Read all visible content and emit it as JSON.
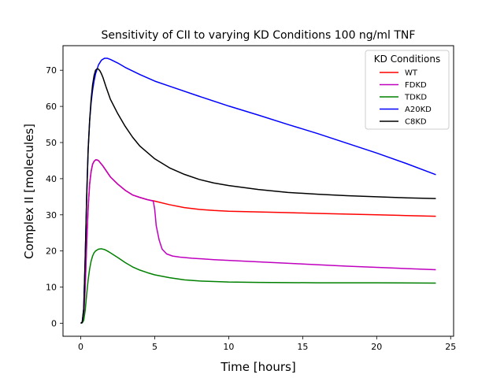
{
  "chart_data": {
    "type": "line",
    "title": "Sensitivity of CII to varying KD Conditions 100 ng/ml TNF",
    "xlabel": "Time [hours]",
    "ylabel": "Complex II [molecules]",
    "xlim": [
      -1.2,
      25.2
    ],
    "ylim": [
      -3.6,
      76.8
    ],
    "xticks": [
      0,
      5,
      10,
      15,
      20,
      25
    ],
    "yticks": [
      0,
      10,
      20,
      30,
      40,
      50,
      60,
      70
    ],
    "grid": false,
    "legend": {
      "title": "KD Conditions",
      "placement": "upper right"
    },
    "series": [
      {
        "name": "WT",
        "color": "#ff0000",
        "x": [
          0,
          0.1,
          0.2,
          0.3,
          0.4,
          0.5,
          0.6,
          0.7,
          0.8,
          0.9,
          1.0,
          1.1,
          1.2,
          1.3,
          1.5,
          1.7,
          2.0,
          2.5,
          3.0,
          3.5,
          4.0,
          4.5,
          5.0,
          6.0,
          7.0,
          8.0,
          9.0,
          10,
          12,
          14,
          16,
          18,
          20,
          22,
          24
        ],
        "y": [
          0,
          0.2,
          2,
          10,
          22,
          32,
          38.5,
          42,
          44,
          44.8,
          45.2,
          45.2,
          45,
          44.5,
          43.5,
          42.3,
          40.5,
          38.5,
          36.8,
          35.5,
          34.8,
          34.2,
          33.8,
          32.8,
          32.0,
          31.5,
          31.2,
          31.0,
          30.8,
          30.6,
          30.4,
          30.2,
          30.0,
          29.8,
          29.6
        ]
      },
      {
        "name": "FDKD",
        "color": "#bf00bf",
        "x": [
          0,
          0.1,
          0.2,
          0.3,
          0.4,
          0.5,
          0.6,
          0.7,
          0.8,
          0.9,
          1.0,
          1.1,
          1.2,
          1.3,
          1.5,
          1.7,
          2.0,
          2.5,
          3.0,
          3.5,
          4.0,
          4.5,
          4.9,
          5.0,
          5.1,
          5.3,
          5.5,
          5.8,
          6.2,
          6.7,
          7.5,
          9.0,
          12,
          15,
          18,
          21,
          24
        ],
        "y": [
          0,
          0.2,
          2,
          10,
          22,
          32,
          38.5,
          42,
          44,
          44.8,
          45.2,
          45.2,
          45,
          44.5,
          43.5,
          42.3,
          40.5,
          38.5,
          36.8,
          35.5,
          34.8,
          34.2,
          33.8,
          31.5,
          27,
          23,
          20.5,
          19.2,
          18.6,
          18.3,
          18.0,
          17.6,
          17.0,
          16.4,
          15.8,
          15.3,
          14.8
        ]
      },
      {
        "name": "TDKD",
        "color": "#008000",
        "x": [
          0,
          0.1,
          0.2,
          0.3,
          0.4,
          0.5,
          0.6,
          0.7,
          0.8,
          0.9,
          1.0,
          1.2,
          1.4,
          1.6,
          1.8,
          2.0,
          2.5,
          3.0,
          3.5,
          4.0,
          4.5,
          5.0,
          6.0,
          7.0,
          8.0,
          10,
          12,
          16,
          20,
          24
        ],
        "y": [
          0,
          0.1,
          0.8,
          3.5,
          8,
          12,
          15,
          17.2,
          18.6,
          19.5,
          20.0,
          20.5,
          20.6,
          20.4,
          20.0,
          19.5,
          18.2,
          16.8,
          15.6,
          14.7,
          14.0,
          13.4,
          12.6,
          12.0,
          11.7,
          11.4,
          11.3,
          11.2,
          11.2,
          11.1
        ]
      },
      {
        "name": "A20KD",
        "color": "#0000ff",
        "x": [
          0,
          0.1,
          0.2,
          0.3,
          0.4,
          0.5,
          0.6,
          0.7,
          0.8,
          0.9,
          1.0,
          1.2,
          1.4,
          1.6,
          1.8,
          2.0,
          2.5,
          3.0,
          4.0,
          5.0,
          6.0,
          8.0,
          10,
          12,
          14,
          16,
          18,
          20,
          22,
          24
        ],
        "y": [
          0,
          0.3,
          4,
          18,
          35,
          48,
          56,
          61,
          64.5,
          67,
          69,
          71.5,
          72.8,
          73.3,
          73.3,
          73.0,
          72.0,
          70.8,
          68.8,
          67.0,
          65.6,
          62.8,
          60.1,
          57.6,
          55.0,
          52.5,
          49.8,
          47.1,
          44.2,
          41.1
        ]
      },
      {
        "name": "C8KD",
        "color": "#000000",
        "x": [
          0,
          0.1,
          0.2,
          0.3,
          0.4,
          0.5,
          0.6,
          0.7,
          0.8,
          0.9,
          1.0,
          1.1,
          1.2,
          1.3,
          1.4,
          1.5,
          1.7,
          2.0,
          2.5,
          3.0,
          3.5,
          4.0,
          5.0,
          6.0,
          7.0,
          8.0,
          9.0,
          10,
          12,
          14,
          16,
          18,
          20,
          22,
          24
        ],
        "y": [
          0,
          0.3,
          4,
          18,
          35,
          48,
          56,
          62,
          66,
          68.5,
          70,
          70.4,
          70.3,
          69.8,
          69,
          68,
          65.5,
          62,
          58,
          54.5,
          51.5,
          49,
          45.5,
          43,
          41.2,
          39.8,
          38.8,
          38.1,
          37.0,
          36.2,
          35.7,
          35.3,
          35.0,
          34.7,
          34.5
        ]
      }
    ]
  }
}
